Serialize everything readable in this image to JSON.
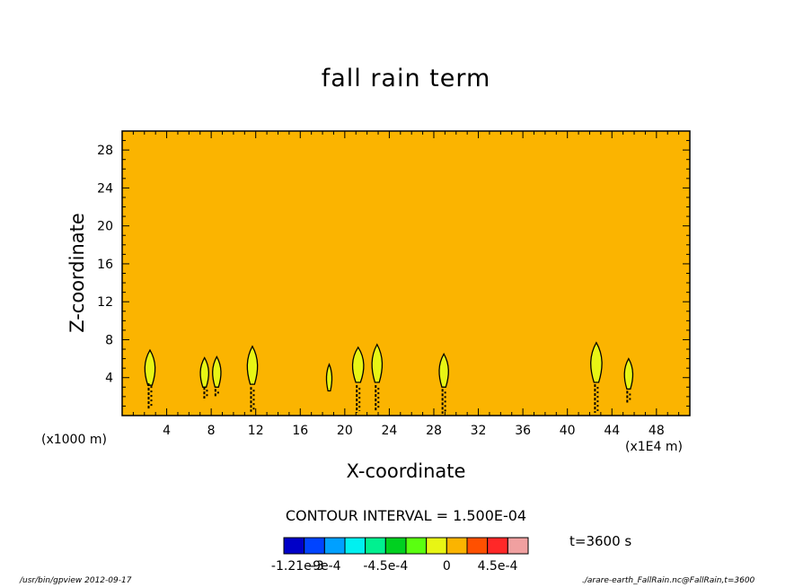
{
  "colors": {
    "background": "#fbb400",
    "positive_small": "#e8f514",
    "zero_band": "#fbb400",
    "line": "#000000"
  },
  "chart_data": {
    "type": "heatmap",
    "title": "fall rain term",
    "xlabel": "X-coordinate",
    "ylabel": "Z-coordinate",
    "x_unit_label": "(x1E4 m)",
    "y_unit_label": "(x1000 m)",
    "xlim": [
      0,
      51
    ],
    "ylim": [
      0,
      30
    ],
    "x_ticks": [
      4,
      8,
      12,
      16,
      20,
      24,
      28,
      32,
      36,
      40,
      44,
      48
    ],
    "y_ticks": [
      4,
      8,
      12,
      16,
      20,
      24,
      28
    ],
    "contour_interval_text": "CONTOUR INTERVAL = 1.500E-04",
    "time_text": "t=3600 s",
    "colorbar": {
      "colors": [
        "#0000c8",
        "#0044ff",
        "#00a0ff",
        "#00f0f0",
        "#00f090",
        "#00d020",
        "#5aff10",
        "#e8f514",
        "#fbb400",
        "#ff5000",
        "#ff2828",
        "#f0a0a0"
      ],
      "labels": [
        "-1.21e-3",
        "-9e-4",
        "-4.5e-4",
        "0",
        "4.5e-4"
      ]
    },
    "cells": [
      {
        "x": 2.5,
        "z_bottom": 3.2,
        "z_top": 6.9,
        "half_width": 0.55
      },
      {
        "x": 7.4,
        "z_bottom": 3.0,
        "z_top": 6.1,
        "half_width": 0.45
      },
      {
        "x": 8.5,
        "z_bottom": 3.0,
        "z_top": 6.2,
        "half_width": 0.45
      },
      {
        "x": 11.7,
        "z_bottom": 3.3,
        "z_top": 7.3,
        "half_width": 0.55
      },
      {
        "x": 18.6,
        "z_bottom": 2.6,
        "z_top": 5.4,
        "half_width": 0.3
      },
      {
        "x": 21.2,
        "z_bottom": 3.5,
        "z_top": 7.2,
        "half_width": 0.6
      },
      {
        "x": 22.9,
        "z_bottom": 3.5,
        "z_top": 7.5,
        "half_width": 0.55
      },
      {
        "x": 28.9,
        "z_bottom": 3.0,
        "z_top": 6.5,
        "half_width": 0.5
      },
      {
        "x": 42.6,
        "z_bottom": 3.5,
        "z_top": 7.7,
        "half_width": 0.6
      },
      {
        "x": 45.5,
        "z_bottom": 2.8,
        "z_top": 6.0,
        "half_width": 0.45
      }
    ],
    "negative_streaks": [
      {
        "x": 2.5,
        "z_bottom": 0.6,
        "z_top": 3.4
      },
      {
        "x": 7.5,
        "z_bottom": 1.8,
        "z_top": 3.0
      },
      {
        "x": 8.5,
        "z_bottom": 2.0,
        "z_top": 2.8
      },
      {
        "x": 11.7,
        "z_bottom": 0.4,
        "z_top": 3.0
      },
      {
        "x": 21.2,
        "z_bottom": 0.3,
        "z_top": 3.2
      },
      {
        "x": 22.9,
        "z_bottom": 0.4,
        "z_top": 3.2
      },
      {
        "x": 28.9,
        "z_bottom": 0.2,
        "z_top": 2.8
      },
      {
        "x": 42.6,
        "z_bottom": 0.3,
        "z_top": 3.3
      },
      {
        "x": 45.5,
        "z_bottom": 1.2,
        "z_top": 2.6
      }
    ]
  },
  "footer": {
    "left": "/usr/bin/gpview  2012-09-17",
    "right": "./arare-earth_FallRain.nc@FallRain,t=3600"
  }
}
